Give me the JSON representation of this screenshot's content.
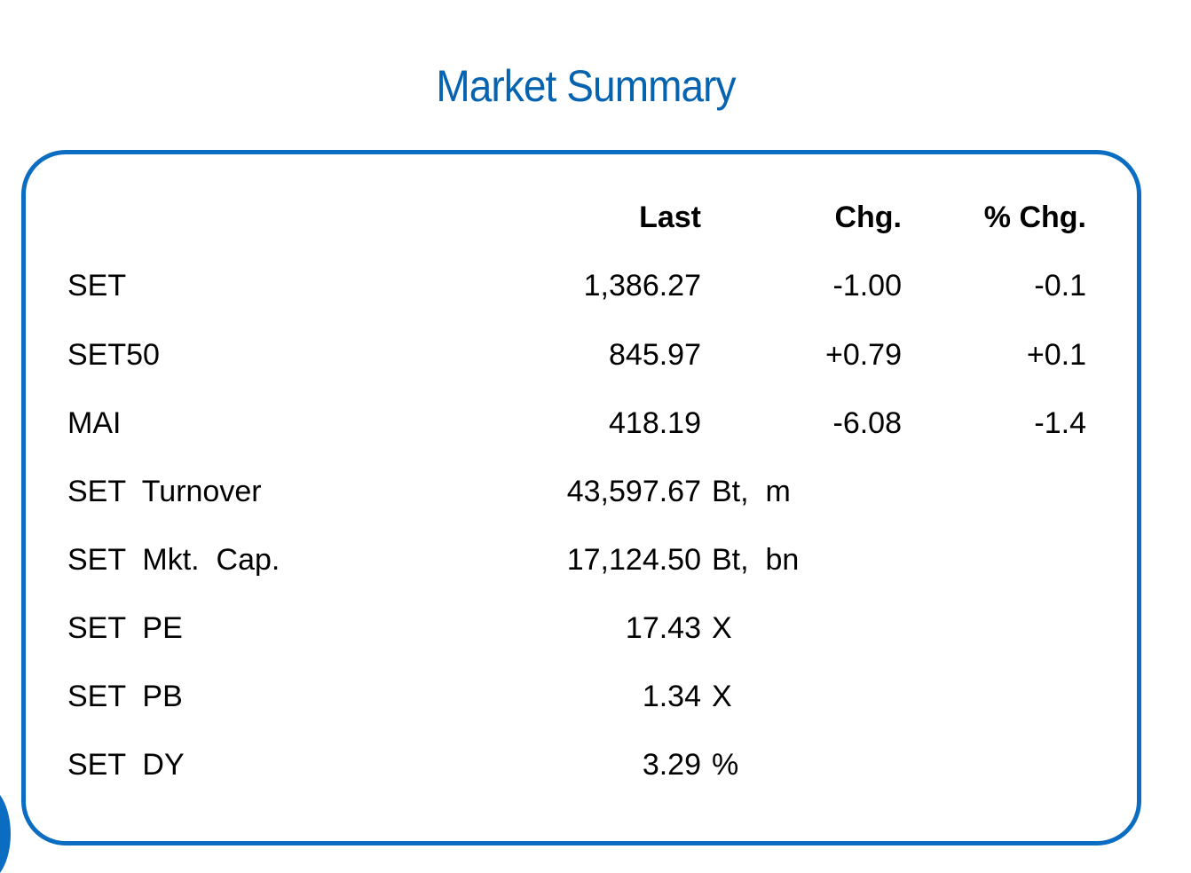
{
  "title": "Market Summary",
  "colors": {
    "accent": "#0563b0",
    "border": "#0b6dc2"
  },
  "headers": {
    "last": "Last",
    "chg": "Chg.",
    "pct_chg": "% Chg."
  },
  "indices": [
    {
      "name": "SET",
      "last": "1,386.27",
      "chg": "-1.00",
      "pct_chg": "-0.1"
    },
    {
      "name": "SET50",
      "last": "845.97",
      "chg": "+0.79",
      "pct_chg": "+0.1"
    },
    {
      "name": "MAI",
      "last": "418.19",
      "chg": "-6.08",
      "pct_chg": "-1.4"
    }
  ],
  "stats": [
    {
      "name": "SET  Turnover",
      "value": "43,597.67",
      "unit": "Bt,  m"
    },
    {
      "name": "SET  Mkt.  Cap.",
      "value": "17,124.50",
      "unit": "Bt,  bn"
    },
    {
      "name": "SET  PE",
      "value": "17.43",
      "unit": "X"
    },
    {
      "name": "SET  PB",
      "value": "1.34",
      "unit": "X"
    },
    {
      "name": "SET  DY",
      "value": "3.29",
      "unit": "%"
    }
  ]
}
